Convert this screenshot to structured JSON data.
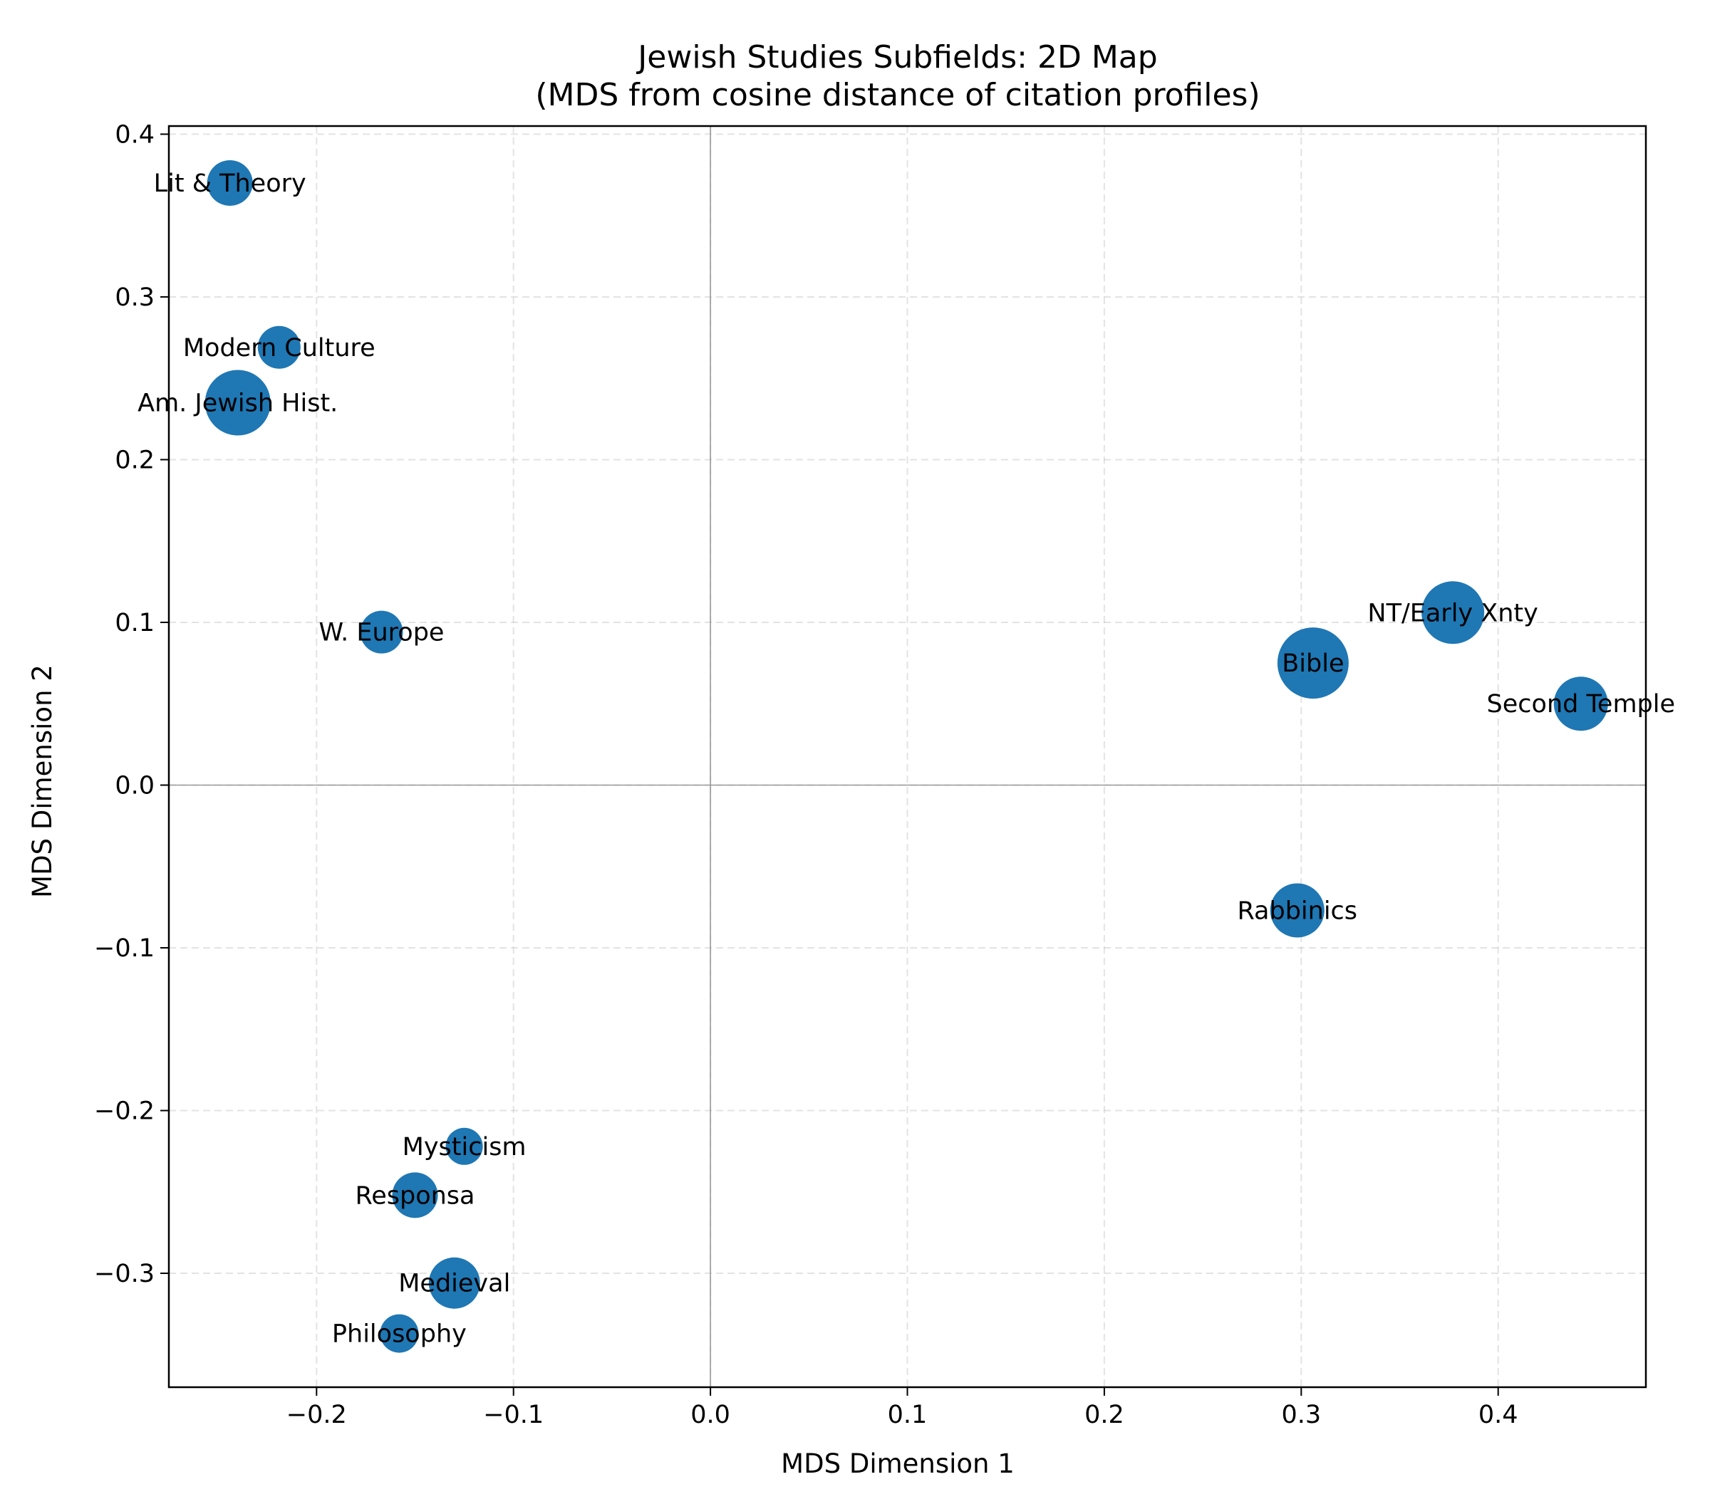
{
  "chart_data": {
    "type": "scatter",
    "title": "Jewish Studies Subfields: 2D Map",
    "subtitle": "(MDS from cosine distance of citation profiles)",
    "xlabel": "MDS Dimension 1",
    "ylabel": "MDS Dimension 2",
    "xlim": [
      -0.275,
      0.475
    ],
    "ylim": [
      -0.37,
      0.405
    ],
    "xticks": [
      -0.2,
      -0.1,
      0.0,
      0.1,
      0.2,
      0.3,
      0.4
    ],
    "xtick_labels": [
      "−0.2",
      "−0.1",
      "0.0",
      "0.1",
      "0.2",
      "0.3",
      "0.4"
    ],
    "yticks": [
      -0.3,
      -0.2,
      -0.1,
      0.0,
      0.1,
      0.2,
      0.3,
      0.4
    ],
    "ytick_labels": [
      "−0.3",
      "−0.2",
      "−0.1",
      "0.0",
      "0.1",
      "0.2",
      "0.3",
      "0.4"
    ],
    "grid": true,
    "zero_lines": true,
    "marker_color": "#1f77b4",
    "points": [
      {
        "label": "Lit & Theory",
        "x": -0.244,
        "y": 0.37,
        "size": 32
      },
      {
        "label": "Modern Culture",
        "x": -0.219,
        "y": 0.269,
        "size": 30
      },
      {
        "label": "Am. Jewish Hist.",
        "x": -0.24,
        "y": 0.235,
        "size": 46
      },
      {
        "label": "W. Europe",
        "x": -0.167,
        "y": 0.094,
        "size": 30
      },
      {
        "label": "NT/Early Xnty",
        "x": 0.377,
        "y": 0.106,
        "size": 44
      },
      {
        "label": "Bible",
        "x": 0.306,
        "y": 0.075,
        "size": 50
      },
      {
        "label": "Second Temple",
        "x": 0.442,
        "y": 0.05,
        "size": 38
      },
      {
        "label": "Rabbinics",
        "x": 0.298,
        "y": -0.077,
        "size": 38
      },
      {
        "label": "Mysticism",
        "x": -0.125,
        "y": -0.222,
        "size": 26
      },
      {
        "label": "Responsa",
        "x": -0.15,
        "y": -0.252,
        "size": 32
      },
      {
        "label": "Medieval",
        "x": -0.13,
        "y": -0.306,
        "size": 36
      },
      {
        "label": "Philosophy",
        "x": -0.158,
        "y": -0.337,
        "size": 27
      }
    ]
  }
}
